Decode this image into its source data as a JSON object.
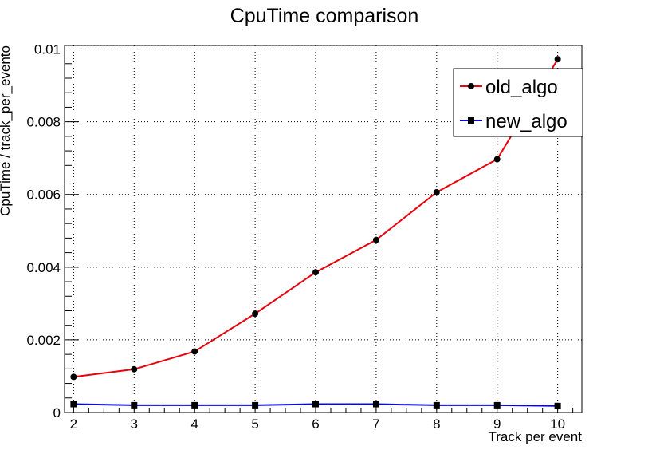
{
  "chart_data": {
    "type": "line",
    "title": "CpuTime comparison",
    "xlabel": "Track per event",
    "ylabel": "CpuTime / track_per_evento",
    "xlim": [
      1.85,
      10.4
    ],
    "ylim": [
      0,
      0.0101
    ],
    "x_ticks": [
      2,
      3,
      4,
      5,
      6,
      7,
      8,
      9,
      10
    ],
    "x_tick_labels": [
      "2",
      "3",
      "4",
      "5",
      "6",
      "7",
      "8",
      "9",
      "10"
    ],
    "y_ticks": [
      0,
      0.002,
      0.004,
      0.006,
      0.008,
      0.01
    ],
    "y_tick_labels": [
      "0",
      "0.002",
      "0.004",
      "0.006",
      "0.008",
      "0.01"
    ],
    "grid": true,
    "legend_position": "top-right",
    "series": [
      {
        "name": "old_algo",
        "color": "#e8000b",
        "marker": "circle",
        "marker_color": "#000000",
        "x": [
          2,
          3,
          4,
          5,
          6,
          7,
          8,
          9,
          10
        ],
        "values": [
          0.00098,
          0.00119,
          0.00168,
          0.00272,
          0.00386,
          0.00475,
          0.00606,
          0.00697,
          0.00972
        ]
      },
      {
        "name": "new_algo",
        "color": "#0a0ac8",
        "marker": "square",
        "marker_color": "#000000",
        "x": [
          2,
          3,
          4,
          5,
          6,
          7,
          8,
          9,
          10
        ],
        "values": [
          0.00023,
          0.0002,
          0.0002,
          0.0002,
          0.00023,
          0.00023,
          0.0002,
          0.0002,
          0.00018
        ]
      }
    ]
  }
}
